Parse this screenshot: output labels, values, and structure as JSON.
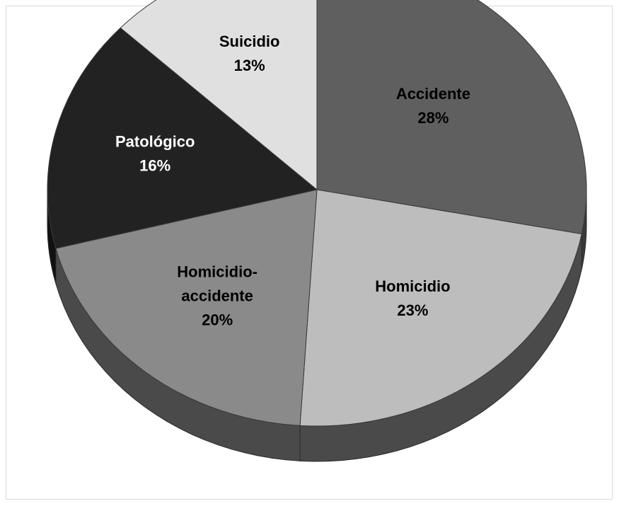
{
  "chart_data": {
    "type": "pie",
    "style": "3d",
    "title": "",
    "start_angle_deg": 0,
    "direction": "clockwise",
    "slices": [
      {
        "label": "Accidente",
        "value": 28,
        "value_label": "28%",
        "color": "#5f5f5f",
        "side_color": "#3a3a3a",
        "text_color": "#000000"
      },
      {
        "label": "Homicidio",
        "value": 23,
        "value_label": "23%",
        "color": "#bdbdbd",
        "side_color": "#4a4a4a",
        "text_color": "#000000"
      },
      {
        "label": "Homicidio-accidente",
        "value": 20,
        "value_label": "20%",
        "color": "#8a8a8a",
        "side_color": "#4a4a4a",
        "text_color": "#000000"
      },
      {
        "label": "Patológico",
        "value": 16,
        "value_label": "16%",
        "color": "#222222",
        "side_color": "#111111",
        "text_color": "#ffffff"
      },
      {
        "label": "Suicidio",
        "value": 13,
        "value_label": "13%",
        "color": "#e0e0e0",
        "side_color": "#777777",
        "text_color": "#000000"
      }
    ],
    "legend": "none",
    "data_labels": "inside"
  }
}
